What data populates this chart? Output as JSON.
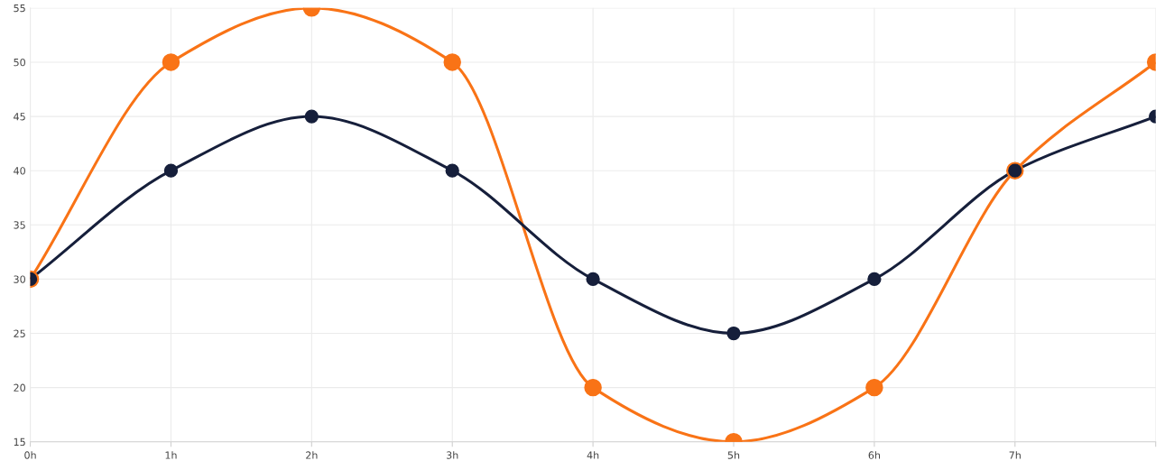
{
  "chart_data": {
    "type": "line",
    "categories": [
      "0h",
      "1h",
      "2h",
      "3h",
      "4h",
      "5h",
      "6h",
      "7h",
      null
    ],
    "series": [
      {
        "color": "#f97316",
        "values": [
          30,
          50,
          55,
          50,
          20,
          15,
          20,
          40,
          50
        ]
      },
      {
        "color": "#161f3b",
        "values": [
          30,
          40,
          45,
          40,
          30,
          25,
          30,
          40,
          45
        ]
      }
    ],
    "ylim": [
      15,
      55
    ],
    "yticks": [
      15,
      20,
      25,
      30,
      35,
      40,
      45,
      50,
      55
    ],
    "grid": true,
    "marker": "circle",
    "line_style": "solid"
  }
}
